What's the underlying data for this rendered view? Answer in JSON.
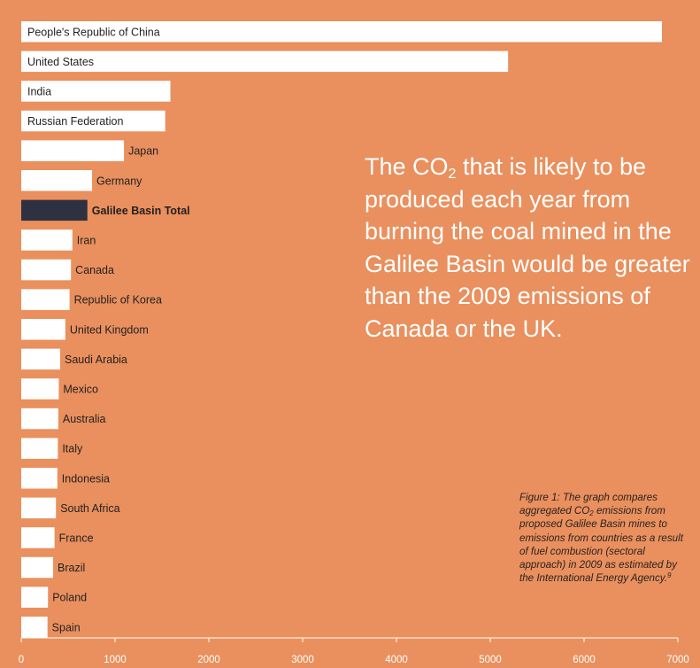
{
  "chart_data": {
    "type": "bar",
    "orientation": "horizontal",
    "categories": [
      "People's Republic of China",
      "United States",
      "India",
      "Russian Federation",
      "Japan",
      "Germany",
      "Galilee Basin Total",
      "Iran",
      "Canada",
      "Republic of Korea",
      "United Kingdom",
      "Saudi Arabia",
      "Mexico",
      "Australia",
      "Italy",
      "Indonesia",
      "South Africa",
      "France",
      "Brazil",
      "Poland",
      "Spain"
    ],
    "values": [
      6830,
      5190,
      1590,
      1535,
      1095,
      755,
      705,
      545,
      530,
      515,
      470,
      415,
      400,
      395,
      390,
      385,
      370,
      355,
      340,
      285,
      280
    ],
    "highlight_index": 6,
    "xlim": [
      0,
      7000
    ],
    "xticks": [
      "0",
      "1000",
      "2000",
      "3000",
      "4000",
      "5000",
      "6000",
      "7000"
    ],
    "colors": {
      "bar": "#ffffff",
      "highlight": "#2e3140",
      "background": "#E9905E"
    },
    "grid": false
  },
  "headline": {
    "part1": "The CO",
    "sub": "2",
    "part2": " that is likely to be produced each year from burning the coal mined in the Galilee Basin would be greater than the 2009 emissions of Canada or the UK."
  },
  "caption": {
    "part1": "Figure 1: The graph compares aggregated CO",
    "sub": "2",
    "part2": " emissions from proposed Galilee Basin mines to emissions from countries as a result of fuel combustion (sectoral approach) in 2009 as estimated by the International Energy Agency.",
    "ref": "9"
  }
}
